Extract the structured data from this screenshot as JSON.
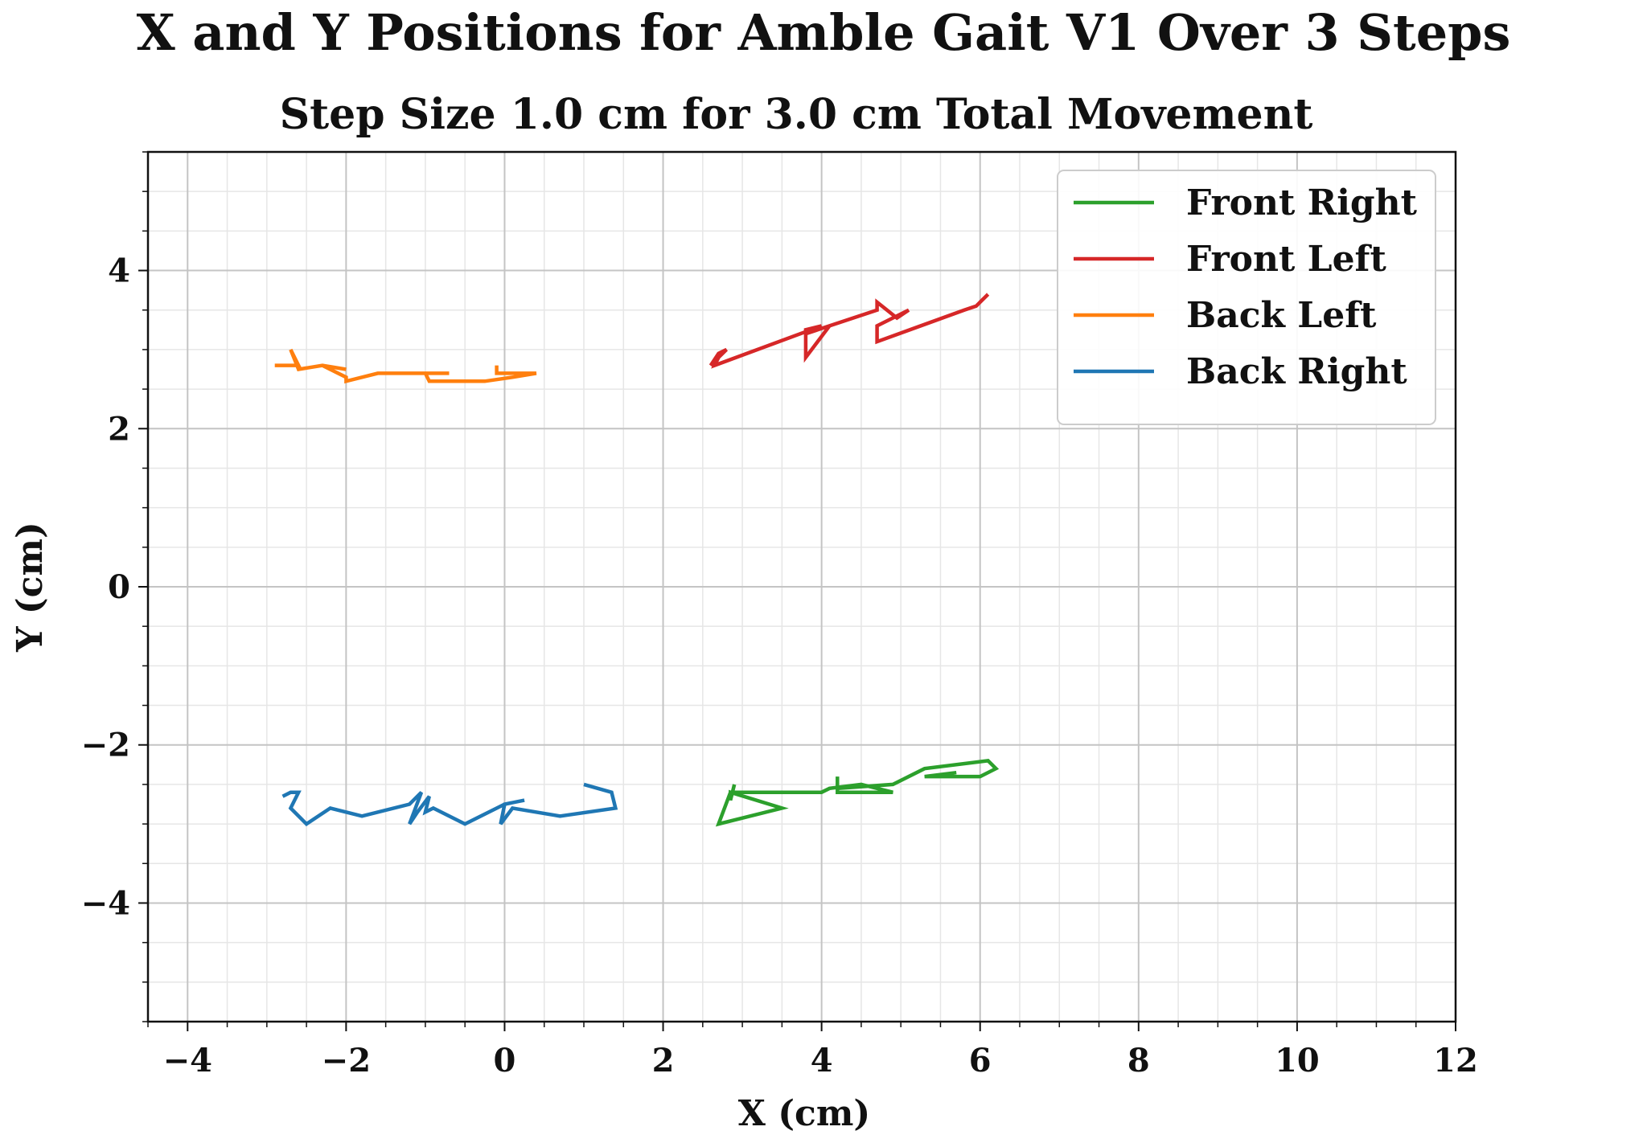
{
  "chart_data": {
    "type": "line",
    "title": "X and Y Positions for Amble Gait V1 Over 3 Steps",
    "subtitle": "Step Size 1.0 cm for 3.0 cm Total Movement",
    "xlabel": "X (cm)",
    "ylabel": "Y (cm)",
    "xlim": [
      -4.5,
      12
    ],
    "ylim": [
      -5.5,
      5.5
    ],
    "x_ticks": [
      -4,
      -2,
      0,
      2,
      4,
      6,
      8,
      10,
      12
    ],
    "x_tick_labels": [
      "−4",
      "−2",
      "0",
      "2",
      "4",
      "6",
      "8",
      "10",
      "12"
    ],
    "y_ticks": [
      -4,
      -2,
      0,
      2,
      4
    ],
    "y_tick_labels": [
      "−4",
      "−2",
      "0",
      "2",
      "4"
    ],
    "grid": true,
    "minor_grid": true,
    "legend_position": "top-right",
    "series": [
      {
        "name": "Front Right",
        "color": "#2ca02c",
        "x": [
          2.9,
          2.85,
          2.85,
          3.5,
          2.7,
          2.85,
          4.0,
          4.1,
          4.5,
          4.9,
          4.2,
          4.2,
          4.2,
          4.9,
          5.3,
          6.1,
          6.2,
          6.0,
          5.3,
          5.7
        ],
        "y": [
          -2.5,
          -2.7,
          -2.6,
          -2.8,
          -3.0,
          -2.6,
          -2.6,
          -2.55,
          -2.5,
          -2.6,
          -2.6,
          -2.4,
          -2.55,
          -2.5,
          -2.3,
          -2.2,
          -2.3,
          -2.4,
          -2.4,
          -2.35
        ]
      },
      {
        "name": "Front Left",
        "color": "#d62728",
        "x": [
          2.7,
          2.6,
          2.7,
          2.8,
          2.7,
          2.65,
          4.0,
          3.8,
          3.8,
          4.1,
          3.8,
          4.7,
          4.7,
          4.95,
          5.1,
          4.7,
          4.7,
          5.8,
          5.95,
          6.1,
          6.0
        ],
        "y": [
          2.9,
          2.8,
          2.95,
          3.0,
          2.9,
          2.8,
          3.3,
          3.25,
          2.9,
          3.3,
          3.2,
          3.5,
          3.6,
          3.4,
          3.5,
          3.3,
          3.1,
          3.5,
          3.55,
          3.7,
          3.6
        ]
      },
      {
        "name": "Back Left",
        "color": "#ff7f0e",
        "x": [
          -2.9,
          -2.6,
          -2.7,
          -2.6,
          -2.3,
          -2.0,
          -2.3,
          -2.0,
          -2.0,
          -1.6,
          -1.1,
          -0.7,
          -1.0,
          -0.95,
          -0.25,
          0.1,
          0.4,
          -0.1,
          -0.1
        ],
        "y": [
          2.8,
          2.8,
          3.0,
          2.75,
          2.8,
          2.75,
          2.8,
          2.65,
          2.6,
          2.7,
          2.7,
          2.7,
          2.7,
          2.6,
          2.6,
          2.65,
          2.7,
          2.7,
          2.8
        ]
      },
      {
        "name": "Back Right",
        "color": "#1f77b4",
        "x": [
          -2.8,
          -2.7,
          -2.6,
          -2.7,
          -2.5,
          -2.2,
          -1.8,
          -1.2,
          -1.05,
          -1.2,
          -1.1,
          -0.95,
          -1.0,
          -0.9,
          -0.5,
          0.0,
          0.25,
          0.0,
          -0.05,
          0.1,
          0.7,
          1.4,
          1.35,
          1.0
        ],
        "y": [
          -2.65,
          -2.6,
          -2.6,
          -2.8,
          -3.0,
          -2.8,
          -2.9,
          -2.75,
          -2.6,
          -3.0,
          -2.85,
          -2.65,
          -2.85,
          -2.8,
          -3.0,
          -2.75,
          -2.7,
          -2.75,
          -3.0,
          -2.8,
          -2.9,
          -2.8,
          -2.6,
          -2.5
        ]
      }
    ]
  }
}
